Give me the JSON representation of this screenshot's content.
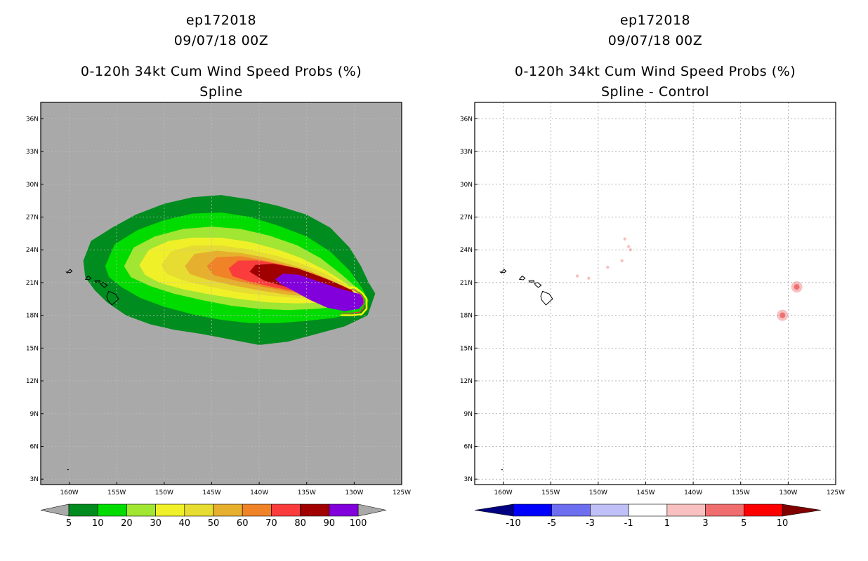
{
  "chart_data": [
    {
      "type": "heatmap",
      "panel": "left",
      "title_lines": [
        "ep172018",
        "09/07/18 00Z",
        "0-120h 34kt Cum Wind Speed Probs (%)",
        "Spline"
      ],
      "xlabel": "",
      "ylabel": "",
      "xlim": [
        -163,
        -125
      ],
      "ylim": [
        2.5,
        37.5
      ],
      "x_ticks": [
        "160W",
        "155W",
        "150W",
        "145W",
        "140W",
        "135W",
        "130W",
        "125W"
      ],
      "y_ticks": [
        "3N",
        "6N",
        "9N",
        "12N",
        "15N",
        "18N",
        "21N",
        "24N",
        "27N",
        "30N",
        "33N",
        "36N"
      ],
      "grid": true,
      "background": "#a9a9a9",
      "colorbar": {
        "labels": [
          "5",
          "10",
          "20",
          "30",
          "40",
          "50",
          "60",
          "70",
          "80",
          "90",
          "100"
        ],
        "colors": [
          "#008c1e",
          "#00dc00",
          "#a0e632",
          "#f0f028",
          "#e6dc32",
          "#e6af2d",
          "#f08228",
          "#fa3c3c",
          "#a00000",
          "#8200dc"
        ],
        "extend_colors": [
          "#a9a9a9",
          "#a9a9a9"
        ]
      },
      "contour_levels": [
        {
          "min": 5,
          "color": "#008c1e",
          "points": [
            [
              -158.5,
              23
            ],
            [
              -157.7,
              24.8
            ],
            [
              -155.5,
              26
            ],
            [
              -153,
              27.2
            ],
            [
              -150,
              28.2
            ],
            [
              -147,
              28.8
            ],
            [
              -144,
              29
            ],
            [
              -141,
              28.6
            ],
            [
              -138,
              28
            ],
            [
              -135,
              27.2
            ],
            [
              -132.5,
              26
            ],
            [
              -130.5,
              24.2
            ],
            [
              -129.3,
              22.5
            ],
            [
              -128.5,
              21
            ],
            [
              -127.8,
              20
            ],
            [
              -128.6,
              18
            ],
            [
              -131,
              17
            ],
            [
              -134,
              16.3
            ],
            [
              -137,
              15.6
            ],
            [
              -140,
              15.3
            ],
            [
              -143,
              15.8
            ],
            [
              -146,
              16.3
            ],
            [
              -149,
              16.7
            ],
            [
              -151.5,
              17.2
            ],
            [
              -154,
              18
            ],
            [
              -156,
              19.2
            ],
            [
              -157.3,
              20.3
            ],
            [
              -158.3,
              21.5
            ]
          ]
        },
        {
          "min": 10,
          "color": "#00dc00",
          "points": [
            [
              -156.2,
              22.5
            ],
            [
              -155.2,
              24.5
            ],
            [
              -152.8,
              25.8
            ],
            [
              -150,
              26.7
            ],
            [
              -147,
              27.3
            ],
            [
              -144,
              27.4
            ],
            [
              -141,
              27
            ],
            [
              -138,
              26.2
            ],
            [
              -135,
              25.2
            ],
            [
              -132.5,
              23.8
            ],
            [
              -130.5,
              22.1
            ],
            [
              -129.2,
              20.5
            ],
            [
              -128.5,
              19.3
            ],
            [
              -129.5,
              18.3
            ],
            [
              -132,
              17.8
            ],
            [
              -135,
              17.5
            ],
            [
              -138,
              17.3
            ],
            [
              -141,
              17.3
            ],
            [
              -144,
              17.6
            ],
            [
              -147,
              18.1
            ],
            [
              -150,
              18.8
            ],
            [
              -152.5,
              19.6
            ],
            [
              -154.5,
              20.6
            ],
            [
              -155.8,
              21.5
            ]
          ]
        },
        {
          "min": 20,
          "color": "#a0e632",
          "points": [
            [
              -154.2,
              22.5
            ],
            [
              -153.2,
              24.2
            ],
            [
              -151,
              25.2
            ],
            [
              -148,
              25.9
            ],
            [
              -145,
              26.1
            ],
            [
              -142,
              25.9
            ],
            [
              -139,
              25.3
            ],
            [
              -136,
              24.4
            ],
            [
              -133.5,
              23.2
            ],
            [
              -131.3,
              21.7
            ],
            [
              -129.6,
              20.4
            ],
            [
              -129.4,
              19.5
            ],
            [
              -131,
              18.9
            ],
            [
              -134,
              18.6
            ],
            [
              -137,
              18.5
            ],
            [
              -140,
              18.6
            ],
            [
              -143,
              18.9
            ],
            [
              -146,
              19.4
            ],
            [
              -149,
              20
            ],
            [
              -151.5,
              20.7
            ],
            [
              -153.5,
              21.5
            ]
          ]
        },
        {
          "min": 30,
          "color": "#f0f028",
          "points": [
            [
              -152.6,
              22.6
            ],
            [
              -151.6,
              24
            ],
            [
              -149.5,
              24.8
            ],
            [
              -147,
              25.1
            ],
            [
              -144,
              25.1
            ],
            [
              -141,
              24.7
            ],
            [
              -138,
              24
            ],
            [
              -135.5,
              23.2
            ],
            [
              -133,
              22.1
            ],
            [
              -131,
              21
            ],
            [
              -129.7,
              20
            ],
            [
              -130.5,
              19.4
            ],
            [
              -133,
              19.2
            ],
            [
              -136,
              19.1
            ],
            [
              -139,
              19.2
            ],
            [
              -142,
              19.5
            ],
            [
              -145,
              19.9
            ],
            [
              -148,
              20.4
            ],
            [
              -150.5,
              21
            ],
            [
              -152,
              21.7
            ]
          ]
        },
        {
          "min": 40,
          "color": "#e6dc32",
          "points": [
            [
              -150.3,
              22.6
            ],
            [
              -149.3,
              23.8
            ],
            [
              -147,
              24.4
            ],
            [
              -144,
              24.4
            ],
            [
              -141,
              24
            ],
            [
              -138,
              23.4
            ],
            [
              -135.5,
              22.7
            ],
            [
              -133,
              21.8
            ],
            [
              -131,
              20.8
            ],
            [
              -129.8,
              20
            ],
            [
              -130.6,
              19.6
            ],
            [
              -133,
              19.5
            ],
            [
              -136,
              19.6
            ],
            [
              -139,
              19.8
            ],
            [
              -142,
              20.1
            ],
            [
              -145,
              20.6
            ],
            [
              -148,
              21.2
            ],
            [
              -149.7,
              21.8
            ]
          ]
        },
        {
          "min": 50,
          "color": "#e6af2d",
          "points": [
            [
              -147.8,
              22.5
            ],
            [
              -146.8,
              23.6
            ],
            [
              -144.5,
              23.9
            ],
            [
              -142,
              23.7
            ],
            [
              -139.5,
              23.3
            ],
            [
              -137,
              22.7
            ],
            [
              -134.5,
              22
            ],
            [
              -132.5,
              21.2
            ],
            [
              -130.8,
              20.5
            ],
            [
              -130.2,
              19.9
            ],
            [
              -131.5,
              19.7
            ],
            [
              -134,
              19.7
            ],
            [
              -137,
              19.9
            ],
            [
              -140,
              20.3
            ],
            [
              -143,
              20.8
            ],
            [
              -145.5,
              21.3
            ],
            [
              -147.3,
              21.8
            ]
          ]
        },
        {
          "min": 60,
          "color": "#f08228",
          "points": [
            [
              -145.5,
              22.5
            ],
            [
              -144.5,
              23.3
            ],
            [
              -142,
              23.4
            ],
            [
              -139.5,
              23
            ],
            [
              -137,
              22.5
            ],
            [
              -134.5,
              21.8
            ],
            [
              -132.5,
              21.1
            ],
            [
              -130.8,
              20.5
            ],
            [
              -130.2,
              19.9
            ],
            [
              -131.5,
              19.8
            ],
            [
              -134,
              19.9
            ],
            [
              -137,
              20.2
            ],
            [
              -140,
              20.7
            ],
            [
              -142.5,
              21.2
            ],
            [
              -144.8,
              21.7
            ]
          ]
        },
        {
          "min": 70,
          "color": "#fa3c3c",
          "points": [
            [
              -143.2,
              22.3
            ],
            [
              -142.2,
              23
            ],
            [
              -140,
              23
            ],
            [
              -137.5,
              22.6
            ],
            [
              -135,
              22
            ],
            [
              -132.8,
              21.3
            ],
            [
              -131,
              20.6
            ],
            [
              -130.2,
              20
            ],
            [
              -131.2,
              19.8
            ],
            [
              -133.5,
              19.9
            ],
            [
              -136,
              20.2
            ],
            [
              -138.5,
              20.6
            ],
            [
              -141,
              21.1
            ],
            [
              -142.8,
              21.6
            ]
          ]
        },
        {
          "min": 80,
          "color": "#a00000",
          "points": [
            [
              -141,
              22
            ],
            [
              -140.4,
              22.6
            ],
            [
              -138.5,
              22.7
            ],
            [
              -136,
              22.3
            ],
            [
              -133.8,
              21.6
            ],
            [
              -131.8,
              20.9
            ],
            [
              -130.3,
              20.3
            ],
            [
              -129.8,
              19.8
            ],
            [
              -131,
              19.7
            ],
            [
              -133,
              19.8
            ],
            [
              -135,
              20.1
            ],
            [
              -137.5,
              20.7
            ],
            [
              -139.5,
              21.2
            ]
          ]
        },
        {
          "min": 90,
          "color": "#8200dc",
          "points": [
            [
              -138.3,
              21.3
            ],
            [
              -137.5,
              21.8
            ],
            [
              -135.8,
              21.7
            ],
            [
              -133.8,
              21.1
            ],
            [
              -131.8,
              20.5
            ],
            [
              -130.2,
              20.1
            ],
            [
              -129.2,
              19.9
            ],
            [
              -128.9,
              19.2
            ],
            [
              -129.5,
              18.6
            ],
            [
              -131,
              18.4
            ],
            [
              -132.8,
              18.7
            ],
            [
              -134.6,
              19.4
            ],
            [
              -136.5,
              20.3
            ],
            [
              -137.8,
              20.9
            ]
          ]
        }
      ],
      "edge_line": {
        "color": "#ffff00",
        "points": [
          [
            -130.4,
            20.6
          ],
          [
            -129.8,
            20.5
          ],
          [
            -129.1,
            20.0
          ],
          [
            -128.7,
            19.5
          ],
          [
            -128.7,
            18.6
          ],
          [
            -129.2,
            18.1
          ],
          [
            -130.2,
            18.0
          ],
          [
            -131.4,
            18.0
          ]
        ]
      },
      "edge_line_inner": {
        "color": "#fa3c3c",
        "points": [
          [
            -130.4,
            20.4
          ],
          [
            -129.9,
            20.3
          ],
          [
            -129.3,
            19.9
          ],
          [
            -129.0,
            19.5
          ],
          [
            -129.0,
            18.7
          ],
          [
            -129.4,
            18.3
          ],
          [
            -130.3,
            18.2
          ],
          [
            -131.4,
            18.2
          ]
        ]
      }
    },
    {
      "type": "heatmap",
      "panel": "right",
      "title_lines": [
        "ep172018",
        "09/07/18 00Z",
        "0-120h 34kt Cum Wind Speed Probs (%)",
        "Spline - Control"
      ],
      "xlabel": "",
      "ylabel": "",
      "xlim": [
        -163,
        -125
      ],
      "ylim": [
        2.5,
        37.5
      ],
      "x_ticks": [
        "160W",
        "155W",
        "150W",
        "145W",
        "140W",
        "135W",
        "130W",
        "125W"
      ],
      "y_ticks": [
        "3N",
        "6N",
        "9N",
        "12N",
        "15N",
        "18N",
        "21N",
        "24N",
        "27N",
        "30N",
        "33N",
        "36N"
      ],
      "grid": true,
      "background": "#ffffff",
      "colorbar": {
        "labels": [
          "-10",
          "-5",
          "-3",
          "-1",
          "1",
          "3",
          "5",
          "10"
        ],
        "colors": [
          "#0000ff",
          "#6e6ef0",
          "#c0c0f8",
          "#ffffff",
          "#f8c0c0",
          "#f06e6e",
          "#ff0000"
        ],
        "extend_colors": [
          "#000080",
          "#800000"
        ]
      },
      "diff_spots": [
        {
          "lon": -152.2,
          "lat": 21.6,
          "value": 1
        },
        {
          "lon": -151.0,
          "lat": 21.4,
          "value": 1
        },
        {
          "lon": -149.0,
          "lat": 22.4,
          "value": 1
        },
        {
          "lon": -147.5,
          "lat": 23.0,
          "value": 1
        },
        {
          "lon": -146.6,
          "lat": 24.0,
          "value": 1
        },
        {
          "lon": -146.8,
          "lat": 24.3,
          "value": 1
        },
        {
          "lon": -147.2,
          "lat": 25.0,
          "value": 1
        },
        {
          "lon": -130.6,
          "lat": 18.0,
          "value": 3
        },
        {
          "lon": -129.1,
          "lat": 20.6,
          "value": 3
        }
      ]
    }
  ]
}
